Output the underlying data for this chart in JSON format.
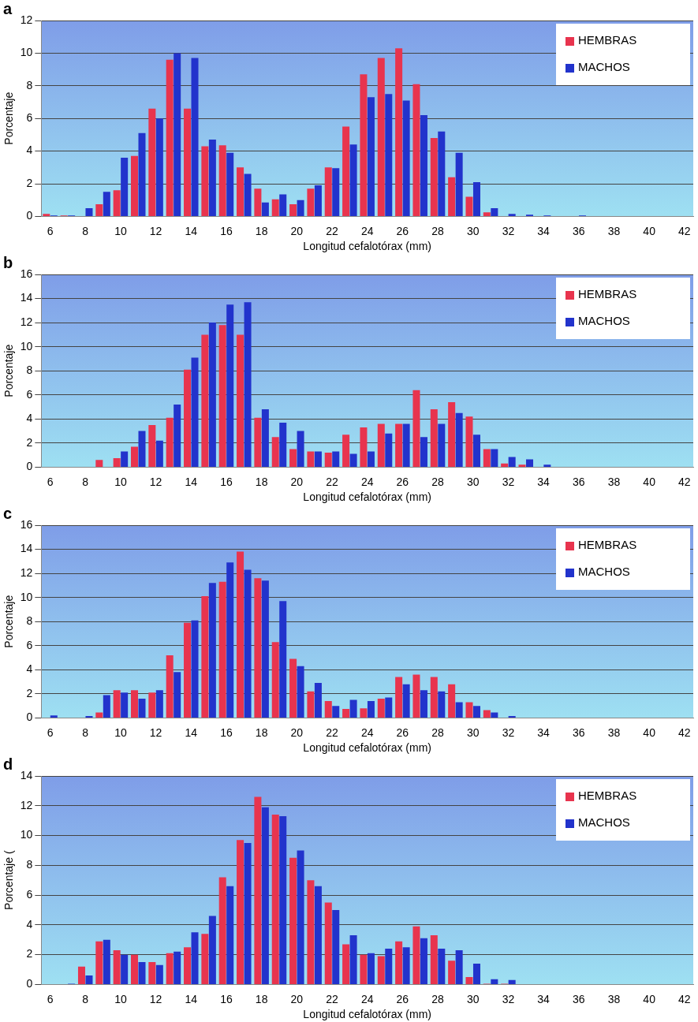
{
  "chart_data": [
    {
      "type": "bar",
      "title": "a",
      "xlabel": "Longitud cefalotórax (mm)",
      "ylabel": "Porcentaje",
      "legend": "top right",
      "grid": "y",
      "ylim": [
        0,
        12
      ],
      "yticks": [
        0,
        2,
        4,
        6,
        8,
        10,
        12
      ],
      "categories": [
        "6",
        null,
        "8",
        null,
        "10",
        null,
        "12",
        null,
        "14",
        null,
        "16",
        null,
        "18",
        null,
        "20",
        null,
        "22",
        null,
        "24",
        null,
        "26",
        null,
        "28",
        null,
        "30",
        null,
        "32",
        null,
        "34",
        null,
        "36",
        null,
        "38",
        null,
        "40",
        null,
        "42"
      ],
      "series": [
        {
          "name": "HEMBRAS",
          "color": "#e8344e",
          "values": [
            0.15,
            0.05,
            0,
            0.75,
            1.6,
            3.7,
            6.6,
            9.6,
            6.6,
            4.3,
            4.35,
            3.0,
            1.7,
            1.05,
            0.75,
            1.7,
            3.0,
            5.5,
            8.7,
            9.7,
            10.3,
            8.1,
            4.8,
            2.4,
            1.2,
            0.25,
            0,
            0,
            0,
            0,
            0,
            0,
            0,
            0,
            0,
            0,
            0
          ]
        },
        {
          "name": "MACHOS",
          "color": "#2233cc",
          "values": [
            0.05,
            0.05,
            0.5,
            1.5,
            3.6,
            5.1,
            6.0,
            10.0,
            9.7,
            4.7,
            3.9,
            2.6,
            0.85,
            1.35,
            1.0,
            1.9,
            2.95,
            4.4,
            7.3,
            7.5,
            7.1,
            6.2,
            5.2,
            3.9,
            2.1,
            0.5,
            0.15,
            0.1,
            0.05,
            0,
            0.05,
            0,
            0,
            0,
            0,
            0,
            0
          ]
        }
      ]
    },
    {
      "type": "bar",
      "title": "b",
      "xlabel": "Longitud cefalotórax (mm)",
      "ylabel": "Porcentaje",
      "legend": "top right",
      "grid": "y",
      "ylim": [
        0,
        16
      ],
      "yticks": [
        0,
        2,
        4,
        6,
        8,
        10,
        12,
        14,
        16
      ],
      "categories": [
        "6",
        null,
        "8",
        null,
        "10",
        null,
        "12",
        null,
        "14",
        null,
        "16",
        null,
        "18",
        null,
        "20",
        null,
        "22",
        null,
        "24",
        null,
        "26",
        null,
        "28",
        null,
        "30",
        null,
        "32",
        null,
        "34",
        null,
        "36",
        null,
        "38",
        null,
        "40",
        null,
        "42"
      ],
      "series": [
        {
          "name": "HEMBRAS",
          "color": "#e8344e",
          "values": [
            0,
            0,
            0,
            0.6,
            0.75,
            1.7,
            3.5,
            4.1,
            8.1,
            11.0,
            11.8,
            11.0,
            4.1,
            2.5,
            1.5,
            1.3,
            1.2,
            2.7,
            3.3,
            3.6,
            3.6,
            6.4,
            4.8,
            5.4,
            4.2,
            1.5,
            0.3,
            0.2,
            0,
            0,
            0,
            0,
            0,
            0,
            0,
            0,
            0
          ]
        },
        {
          "name": "MACHOS",
          "color": "#2233cc",
          "values": [
            0,
            0,
            0,
            0,
            1.3,
            3.0,
            2.2,
            5.2,
            9.1,
            12.0,
            13.5,
            13.7,
            4.8,
            3.7,
            3.0,
            1.3,
            1.3,
            1.1,
            1.3,
            2.8,
            3.6,
            2.5,
            3.6,
            4.5,
            2.7,
            1.5,
            0.85,
            0.65,
            0.2,
            0,
            0,
            0,
            0,
            0,
            0,
            0,
            0
          ]
        }
      ]
    },
    {
      "type": "bar",
      "title": "c",
      "xlabel": "Longitud cefalotórax (mm)",
      "ylabel": "Porcentaje",
      "legend": "top right",
      "grid": "y",
      "ylim": [
        0,
        16
      ],
      "yticks": [
        0,
        2,
        4,
        6,
        8,
        10,
        12,
        14,
        16
      ],
      "categories": [
        "6",
        null,
        "8",
        null,
        "10",
        null,
        "12",
        null,
        "14",
        null,
        "16",
        null,
        "18",
        null,
        "20",
        null,
        "22",
        null,
        "24",
        null,
        "26",
        null,
        "28",
        null,
        "30",
        null,
        "32",
        null,
        "34",
        null,
        "36",
        null,
        "38",
        null,
        "40",
        null,
        "42"
      ],
      "series": [
        {
          "name": "HEMBRAS",
          "color": "#e8344e",
          "values": [
            0,
            0,
            0,
            0.45,
            2.3,
            2.3,
            2.1,
            5.2,
            7.9,
            10.1,
            11.3,
            13.8,
            11.6,
            6.3,
            4.9,
            2.2,
            1.4,
            0.75,
            0.8,
            1.6,
            3.4,
            3.6,
            3.4,
            2.8,
            1.3,
            0.65,
            0,
            0,
            0,
            0,
            0,
            0,
            0,
            0,
            0,
            0,
            0
          ]
        },
        {
          "name": "MACHOS",
          "color": "#2233cc",
          "values": [
            0.2,
            0,
            0.15,
            1.9,
            2.1,
            1.6,
            2.3,
            3.8,
            8.1,
            11.2,
            12.9,
            12.3,
            11.4,
            9.7,
            4.3,
            2.9,
            1.0,
            1.5,
            1.4,
            1.7,
            2.8,
            2.3,
            2.2,
            1.3,
            1.0,
            0.45,
            0.15,
            0,
            0,
            0,
            0,
            0,
            0,
            0,
            0,
            0,
            0
          ]
        }
      ]
    },
    {
      "type": "bar",
      "title": "d",
      "xlabel": "Longitud cefalotórax (mm)",
      "ylabel": "Porcentaje (",
      "legend": "top right",
      "grid": "y",
      "ylim": [
        0,
        14
      ],
      "yticks": [
        0,
        2,
        4,
        6,
        8,
        10,
        12,
        14
      ],
      "categories": [
        "6",
        null,
        "8",
        null,
        "10",
        null,
        "12",
        null,
        "14",
        null,
        "16",
        null,
        "18",
        null,
        "20",
        null,
        "22",
        null,
        "24",
        null,
        "26",
        null,
        "28",
        null,
        "30",
        null,
        "32",
        null,
        "34",
        null,
        "36",
        null,
        "38",
        null,
        "40",
        null,
        "42"
      ],
      "series": [
        {
          "name": "HEMBRAS",
          "color": "#e8344e",
          "values": [
            0,
            0,
            1.2,
            2.9,
            2.3,
            2.0,
            1.5,
            2.1,
            2.5,
            3.4,
            7.2,
            9.7,
            12.6,
            11.4,
            8.5,
            7.0,
            5.5,
            2.7,
            2.0,
            1.9,
            2.9,
            3.9,
            3.3,
            1.6,
            0.5,
            0.05,
            0.05,
            0,
            0,
            0,
            0,
            0,
            0,
            0,
            0,
            0,
            0
          ]
        },
        {
          "name": "MACHOS",
          "color": "#2233cc",
          "values": [
            0,
            0.05,
            0.6,
            3.0,
            2.0,
            1.5,
            1.3,
            2.2,
            3.5,
            4.6,
            6.6,
            9.5,
            11.9,
            11.3,
            9.0,
            6.6,
            5.0,
            3.3,
            2.1,
            2.4,
            2.5,
            3.1,
            2.4,
            2.3,
            1.4,
            0.35,
            0.3,
            0,
            0,
            0,
            0,
            0,
            0,
            0,
            0,
            0,
            0
          ]
        }
      ]
    }
  ]
}
